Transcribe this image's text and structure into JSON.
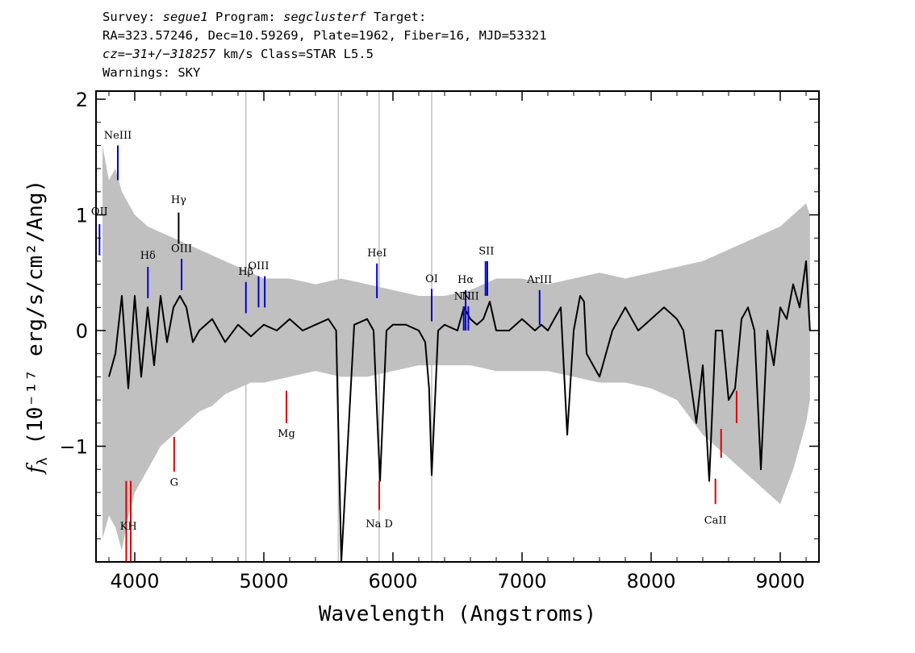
{
  "header": {
    "line1": {
      "survey_label": "Survey:",
      "survey": "segue1",
      "program_label": "Program:",
      "program": "segclusterf",
      "target_label": "Target:"
    },
    "line2": "RA=323.57246, Dec=10.59269, Plate=1962, Fiber=16, MJD=53321",
    "line3": {
      "redshift": "cz=−31+/−318257",
      "rest": " km/s Class=STAR L5.5"
    },
    "line4": "Warnings: SKY"
  },
  "chart_data": {
    "type": "line",
    "xlabel": "Wavelength (Angstroms)",
    "ylabel_prefix": "f",
    "ylabel_subscript": "λ",
    "ylabel_units": "(10⁻¹⁷ erg/s/cm²/Ang)",
    "xlim": [
      3700,
      9300
    ],
    "ylim": [
      -2.0,
      2.07
    ],
    "xticks": [
      {
        "value": 4000,
        "label": "4000"
      },
      {
        "value": 5000,
        "label": "5000"
      },
      {
        "value": 6000,
        "label": "6000"
      },
      {
        "value": 7000,
        "label": "7000"
      },
      {
        "value": 8000,
        "label": "8000"
      },
      {
        "value": 9000,
        "label": "9000"
      }
    ],
    "yticks": [
      {
        "value": -1,
        "label": "−1"
      },
      {
        "value": 0,
        "label": "0"
      },
      {
        "value": 1,
        "label": "1"
      },
      {
        "value": 2,
        "label": "2"
      }
    ],
    "colors": {
      "flux": "#000000",
      "error": "#c0c0c0",
      "emission": "#0000cc",
      "balmer": "#000000",
      "absorption": "#dd0000"
    },
    "series": [
      {
        "role": "flux",
        "x": [
          3800,
          3850,
          3900,
          3950,
          4000,
          4050,
          4100,
          4150,
          4200,
          4250,
          4300,
          4350,
          4400,
          4450,
          4500,
          4600,
          4700,
          4800,
          4900,
          5000,
          5100,
          5200,
          5300,
          5400,
          5500,
          5560,
          5600,
          5700,
          5800,
          5850,
          5880,
          5900,
          5950,
          6000,
          6100,
          6200,
          6250,
          6280,
          6300,
          6350,
          6400,
          6500,
          6550,
          6600,
          6650,
          6700,
          6750,
          6800,
          6900,
          7000,
          7100,
          7150,
          7200,
          7300,
          7350,
          7400,
          7450,
          7480,
          7500,
          7600,
          7700,
          7800,
          7850,
          7900,
          8000,
          8100,
          8200,
          8250,
          8300,
          8350,
          8400,
          8450,
          8500,
          8550,
          8600,
          8650,
          8700,
          8750,
          8800,
          8850,
          8900,
          8950,
          9000,
          9050,
          9100,
          9150,
          9200,
          9230
        ],
        "y": [
          -0.4,
          -0.2,
          0.3,
          -0.5,
          0.3,
          -0.4,
          0.2,
          -0.3,
          0.3,
          -0.1,
          0.2,
          0.3,
          0.2,
          -0.1,
          0.0,
          0.1,
          -0.1,
          0.05,
          -0.05,
          0.05,
          0.0,
          0.1,
          0.0,
          0.05,
          0.1,
          0.0,
          -2.0,
          0.05,
          0.1,
          0.0,
          -0.8,
          -1.3,
          0.0,
          0.05,
          0.05,
          0.0,
          -0.1,
          -0.5,
          -1.25,
          0.0,
          0.05,
          0.0,
          0.2,
          0.1,
          0.05,
          0.1,
          0.25,
          0.0,
          0.0,
          0.1,
          0.0,
          0.05,
          0.0,
          0.2,
          -0.9,
          0.0,
          0.3,
          0.25,
          -0.2,
          -0.4,
          0.0,
          0.2,
          0.1,
          0.0,
          0.1,
          0.2,
          0.1,
          0.0,
          -0.4,
          -0.8,
          -0.3,
          -1.3,
          0.0,
          0.0,
          -0.6,
          -0.5,
          0.1,
          0.2,
          0.0,
          -1.2,
          0.0,
          -0.3,
          0.2,
          0.1,
          0.4,
          0.2,
          0.6,
          0.0
        ]
      },
      {
        "role": "error",
        "x": [
          3750,
          3800,
          3850,
          3900,
          3950,
          4000,
          4100,
          4200,
          4300,
          4400,
          4500,
          4600,
          4700,
          4800,
          4900,
          5000,
          5200,
          5400,
          5600,
          5800,
          6000,
          6200,
          6400,
          6600,
          6800,
          7000,
          7200,
          7400,
          7600,
          7800,
          8000,
          8200,
          8400,
          8600,
          8800,
          9000,
          9100,
          9200,
          9230
        ],
        "yhi": [
          1.6,
          1.3,
          1.4,
          1.2,
          1.1,
          1.0,
          0.9,
          0.85,
          0.8,
          0.75,
          0.7,
          0.65,
          0.6,
          0.55,
          0.5,
          0.45,
          0.45,
          0.4,
          0.45,
          0.4,
          0.35,
          0.3,
          0.3,
          0.35,
          0.45,
          0.45,
          0.4,
          0.45,
          0.5,
          0.45,
          0.5,
          0.55,
          0.6,
          0.7,
          0.8,
          0.9,
          1.0,
          1.1,
          1.0
        ],
        "ylo": [
          -1.8,
          -1.6,
          -1.7,
          -1.9,
          -1.6,
          -1.4,
          -1.2,
          -1.0,
          -0.9,
          -0.8,
          -0.7,
          -0.65,
          -0.55,
          -0.5,
          -0.45,
          -0.45,
          -0.4,
          -0.35,
          -0.4,
          -0.4,
          -0.35,
          -0.3,
          -0.3,
          -0.3,
          -0.35,
          -0.35,
          -0.35,
          -0.4,
          -0.45,
          -0.45,
          -0.5,
          -0.6,
          -0.9,
          -1.1,
          -1.3,
          -1.5,
          -1.2,
          -0.8,
          -0.6
        ]
      }
    ],
    "line_markers": [
      {
        "label": "OII",
        "wavelength": 3727,
        "y0": 0.65,
        "y1": 0.92,
        "type": "emission",
        "label_y": 1.0
      },
      {
        "label": "NeIII",
        "wavelength": 3869,
        "y0": 1.3,
        "y1": 1.6,
        "type": "emission",
        "label_y": 1.66
      },
      {
        "label": "Hδ",
        "wavelength": 4102,
        "y0": 0.28,
        "y1": 0.55,
        "type": "emission",
        "label_y": 0.62
      },
      {
        "label": "Hγ",
        "wavelength": 4340,
        "y0": 0.75,
        "y1": 1.02,
        "type": "balmer",
        "label_y": 1.1
      },
      {
        "label": "OIII",
        "wavelength": 4363,
        "y0": 0.35,
        "y1": 0.62,
        "type": "emission",
        "label_y": 0.68
      },
      {
        "label": "Hβ",
        "wavelength": 4861,
        "y0": 0.15,
        "y1": 0.42,
        "type": "emission",
        "label_y": 0.48
      },
      {
        "label": "OIII",
        "wavelength": 4959,
        "y0": 0.2,
        "y1": 0.47,
        "type": "emission",
        "label_y": 0.53
      },
      {
        "label": "OIII",
        "wavelength": 5007,
        "y0": 0.2,
        "y1": 0.47,
        "type": "emission",
        "label_y": 0.53
      },
      {
        "label": "HeI",
        "wavelength": 5876,
        "y0": 0.28,
        "y1": 0.58,
        "type": "emission",
        "label_y": 0.64
      },
      {
        "label": "OI",
        "wavelength": 6300,
        "y0": 0.08,
        "y1": 0.36,
        "type": "emission",
        "label_y": 0.42
      },
      {
        "label": "NII",
        "wavelength": 6548,
        "y0": 0.0,
        "y1": 0.21,
        "type": "emission",
        "label_y": 0.27
      },
      {
        "label": "Hα",
        "wavelength": 6563,
        "y0": 0.0,
        "y1": 0.35,
        "type": "emission",
        "label_y": 0.41
      },
      {
        "label": "NII",
        "wavelength": 6584,
        "y0": 0.0,
        "y1": 0.21,
        "type": "emission",
        "label_y": 0.27
      },
      {
        "label": "SII",
        "wavelength": 6717,
        "y0": 0.3,
        "y1": 0.6,
        "type": "emission",
        "label_y": 0.66
      },
      {
        "label": "SII",
        "wavelength": 6731,
        "y0": 0.3,
        "y1": 0.6,
        "type": "emission",
        "label_y": 0.66
      },
      {
        "label": "ArIII",
        "wavelength": 7136,
        "y0": 0.05,
        "y1": 0.35,
        "type": "emission",
        "label_y": 0.41
      },
      {
        "label": "K",
        "wavelength": 3934,
        "y0": -2.0,
        "y1": -1.3,
        "type": "absorption",
        "label_y": -1.72
      },
      {
        "label": "H",
        "wavelength": 3969,
        "y0": -2.0,
        "y1": -1.3,
        "type": "absorption",
        "label_y": -1.72
      },
      {
        "label": "G",
        "wavelength": 4305,
        "y0": -1.22,
        "y1": -0.92,
        "type": "absorption",
        "label_y": -1.34
      },
      {
        "label": "Mg",
        "wavelength": 5175,
        "y0": -0.8,
        "y1": -0.52,
        "type": "absorption",
        "label_y": -0.92
      },
      {
        "label": "Na D",
        "wavelength": 5894,
        "y0": -1.55,
        "y1": -1.3,
        "type": "absorption",
        "label_y": -1.7
      },
      {
        "label": "CaII",
        "wavelength": 8498,
        "y0": -1.5,
        "y1": -1.28,
        "type": "absorption",
        "label_y": -1.67
      },
      {
        "label": "",
        "wavelength": 8542,
        "y0": -1.1,
        "y1": -0.85,
        "type": "absorption",
        "label_y": -1.0
      },
      {
        "label": "",
        "wavelength": 8662,
        "y0": -0.8,
        "y1": -0.52,
        "type": "absorption",
        "label_y": -1.0
      }
    ],
    "label_pairs": [
      {
        "text": "KH",
        "wavelength": 3951,
        "label_y": -1.72
      },
      {
        "text": "NII",
        "wavelength": 6540,
        "label_y": 0.27
      },
      {
        "text": "NII",
        "wavelength": 6600,
        "label_y": 0.27
      },
      {
        "text": "SII",
        "wavelength": 6724,
        "label_y": 0.66
      }
    ]
  }
}
